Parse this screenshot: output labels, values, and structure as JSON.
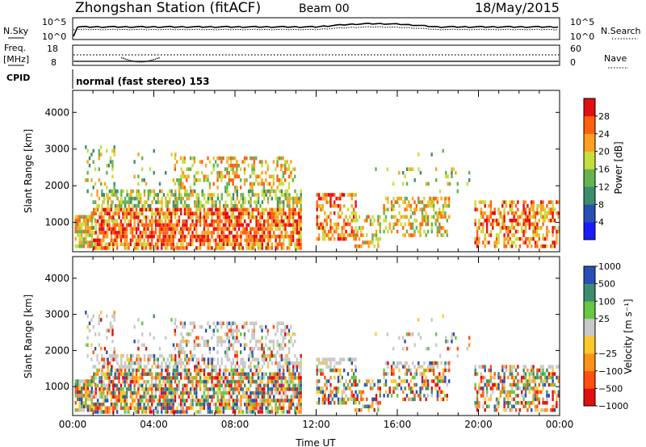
{
  "header": {
    "title": "Zhongshan Station (fitACF)",
    "beam": "Beam 00",
    "date": "18/May/2015"
  },
  "noise_panel": {
    "left_label": "N.Sky",
    "right_label": "N.Search",
    "left_ticks": [
      "10^5",
      "10^0"
    ],
    "right_ticks": [
      "10^5",
      "10^0"
    ]
  },
  "freq_panel": {
    "left_label_line1": "Freq.",
    "left_label_line2": "[MHz]",
    "right_label": "Nave",
    "left_ticks": [
      "18",
      "8"
    ],
    "right_ticks": [
      "60",
      "0"
    ]
  },
  "cpid_panel": {
    "label": "CPID",
    "text": "normal (fast stereo) 153"
  },
  "colors": {
    "power_scale": [
      "#1a1aff",
      "#2850b4",
      "#3c8c6e",
      "#64b450",
      "#c8dc3c",
      "#ffa020",
      "#ff6010",
      "#e01010"
    ],
    "velocity_scale": [
      "#e01010",
      "#ff5010",
      "#ff9018",
      "#ffc828",
      "#c8c8c8",
      "#64c840",
      "#3c8c6e",
      "#2850b4"
    ]
  },
  "chart_data": [
    {
      "type": "heatmap",
      "title": "",
      "ylabel": "Slant Range [km]",
      "xlabel": "",
      "y_ticks": [
        "1000",
        "2000",
        "3000",
        "4000"
      ],
      "ylim": [
        200,
        4600
      ],
      "xlim": [
        0,
        24
      ],
      "colorbar": {
        "label": "Power [dB]",
        "ticks": [
          "4",
          "8",
          "12",
          "16",
          "20",
          "24",
          "28"
        ],
        "range": [
          0,
          32
        ]
      }
    },
    {
      "type": "heatmap",
      "title": "",
      "ylabel": "Slant Range [km]",
      "xlabel": "Time UT",
      "x_ticks": [
        "00:00",
        "04:00",
        "08:00",
        "12:00",
        "16:00",
        "20:00",
        "00:00"
      ],
      "y_ticks": [
        "1000",
        "2000",
        "3000",
        "4000"
      ],
      "ylim": [
        200,
        4600
      ],
      "xlim": [
        0,
        24
      ],
      "colorbar": {
        "label": "Velocity [m s⁻¹]",
        "ticks": [
          "1000",
          "500",
          "100",
          "25",
          "−25",
          "−100",
          "−500",
          "−1000"
        ]
      }
    }
  ]
}
